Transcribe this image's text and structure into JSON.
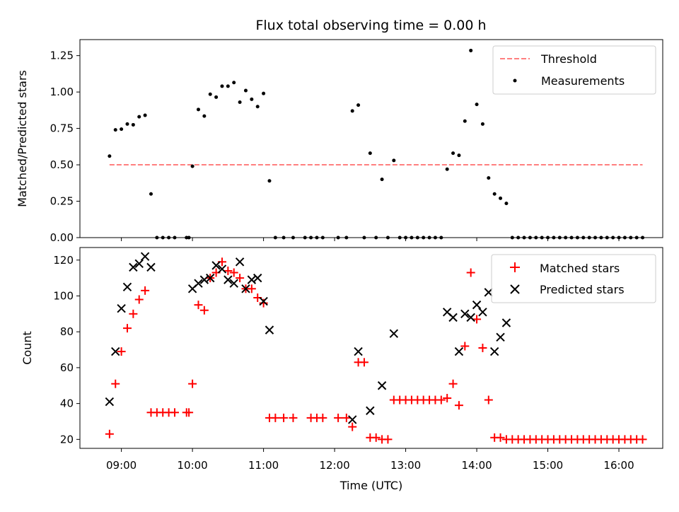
{
  "chart_data": [
    {
      "type": "scatter",
      "panel": "top",
      "title": "Flux total observing time = 0.00 h",
      "xlabel": "",
      "ylabel": "Matched/Predicted stars",
      "ylim": [
        0,
        1.36
      ],
      "xlim": [
        "08:25",
        "16:37"
      ],
      "yticks": [
        "0.00",
        "0.25",
        "0.50",
        "0.75",
        "1.00",
        "1.25"
      ],
      "ytick_values": [
        0,
        0.25,
        0.5,
        0.75,
        1.0,
        1.25
      ],
      "grid": false,
      "legend_position": "top-right",
      "threshold": {
        "name": "Threshold",
        "color": "#ff7f7f",
        "style": "dashed",
        "value": 0.5,
        "x_start": "08:50",
        "x_end": "16:20"
      },
      "series": [
        {
          "name": "Measurements",
          "color": "#000000",
          "marker": "dot",
          "points": [
            [
              "08:50",
              0.56
            ],
            [
              "08:55",
              0.74
            ],
            [
              "09:00",
              0.745
            ],
            [
              "09:05",
              0.78
            ],
            [
              "09:10",
              0.775
            ],
            [
              "09:15",
              0.83
            ],
            [
              "09:20",
              0.84
            ],
            [
              "09:25",
              0.3
            ],
            [
              "09:30",
              0.0
            ],
            [
              "09:35",
              0.0
            ],
            [
              "09:40",
              0.0
            ],
            [
              "09:45",
              0.0
            ],
            [
              "09:55",
              0.0
            ],
            [
              "09:57",
              0.0
            ],
            [
              "10:00",
              0.49
            ],
            [
              "10:05",
              0.88
            ],
            [
              "10:10",
              0.835
            ],
            [
              "10:15",
              0.985
            ],
            [
              "10:20",
              0.965
            ],
            [
              "10:25",
              1.04
            ],
            [
              "10:30",
              1.04
            ],
            [
              "10:35",
              1.065
            ],
            [
              "10:40",
              0.93
            ],
            [
              "10:45",
              1.01
            ],
            [
              "10:50",
              0.95
            ],
            [
              "10:55",
              0.9
            ],
            [
              "11:00",
              0.99
            ],
            [
              "11:05",
              0.39
            ],
            [
              "11:10",
              0.0
            ],
            [
              "11:17",
              0.0
            ],
            [
              "11:25",
              0.0
            ],
            [
              "11:35",
              0.0
            ],
            [
              "11:40",
              0.0
            ],
            [
              "11:45",
              0.0
            ],
            [
              "11:50",
              0.0
            ],
            [
              "12:03",
              0.0
            ],
            [
              "12:10",
              0.0
            ],
            [
              "12:15",
              0.87
            ],
            [
              "12:20",
              0.91
            ],
            [
              "12:25",
              0.0
            ],
            [
              "12:30",
              0.58
            ],
            [
              "12:35",
              0.0
            ],
            [
              "12:40",
              0.4
            ],
            [
              "12:45",
              0.0
            ],
            [
              "12:50",
              0.53
            ],
            [
              "12:55",
              0.0
            ],
            [
              "13:00",
              0.0
            ],
            [
              "13:05",
              0.0
            ],
            [
              "13:10",
              0.0
            ],
            [
              "13:15",
              0.0
            ],
            [
              "13:20",
              0.0
            ],
            [
              "13:25",
              0.0
            ],
            [
              "13:30",
              0.0
            ],
            [
              "13:35",
              0.47
            ],
            [
              "13:40",
              0.58
            ],
            [
              "13:45",
              0.565
            ],
            [
              "13:50",
              0.8
            ],
            [
              "13:55",
              1.285
            ],
            [
              "14:00",
              0.915
            ],
            [
              "14:05",
              0.78
            ],
            [
              "14:10",
              0.41
            ],
            [
              "14:15",
              0.3
            ],
            [
              "14:20",
              0.27
            ],
            [
              "14:25",
              0.235
            ],
            [
              "14:30",
              0.0
            ],
            [
              "14:35",
              0.0
            ],
            [
              "14:40",
              0.0
            ],
            [
              "14:45",
              0.0
            ],
            [
              "14:50",
              0.0
            ],
            [
              "14:55",
              0.0
            ],
            [
              "15:00",
              0.0
            ],
            [
              "15:05",
              0.0
            ],
            [
              "15:10",
              0.0
            ],
            [
              "15:15",
              0.0
            ],
            [
              "15:20",
              0.0
            ],
            [
              "15:25",
              0.0
            ],
            [
              "15:30",
              0.0
            ],
            [
              "15:35",
              0.0
            ],
            [
              "15:40",
              0.0
            ],
            [
              "15:45",
              0.0
            ],
            [
              "15:50",
              0.0
            ],
            [
              "15:55",
              0.0
            ],
            [
              "16:00",
              0.0
            ],
            [
              "16:05",
              0.0
            ],
            [
              "16:10",
              0.0
            ],
            [
              "16:15",
              0.0
            ],
            [
              "16:20",
              0.0
            ]
          ]
        }
      ]
    },
    {
      "type": "scatter",
      "panel": "bottom",
      "title": "",
      "xlabel": "Time (UTC)",
      "ylabel": "Count",
      "ylim": [
        15,
        127
      ],
      "xlim": [
        "08:25",
        "16:37"
      ],
      "xticks": [
        "09:00",
        "10:00",
        "11:00",
        "12:00",
        "13:00",
        "14:00",
        "15:00",
        "16:00"
      ],
      "yticks": [
        "20",
        "40",
        "60",
        "80",
        "100",
        "120"
      ],
      "ytick_values": [
        20,
        40,
        60,
        80,
        100,
        120
      ],
      "grid": false,
      "legend_position": "top-right",
      "series": [
        {
          "name": "Matched stars",
          "color": "#ff0000",
          "marker": "plus",
          "points": [
            [
              "08:50",
              23
            ],
            [
              "08:55",
              51
            ],
            [
              "09:00",
              69
            ],
            [
              "09:05",
              82
            ],
            [
              "09:10",
              90
            ],
            [
              "09:15",
              98
            ],
            [
              "09:20",
              103
            ],
            [
              "09:25",
              35
            ],
            [
              "09:30",
              35
            ],
            [
              "09:35",
              35
            ],
            [
              "09:40",
              35
            ],
            [
              "09:45",
              35
            ],
            [
              "09:55",
              35
            ],
            [
              "09:57",
              35
            ],
            [
              "10:00",
              51
            ],
            [
              "10:05",
              95
            ],
            [
              "10:10",
              92
            ],
            [
              "10:15",
              110
            ],
            [
              "10:20",
              113
            ],
            [
              "10:25",
              119
            ],
            [
              "10:30",
              114
            ],
            [
              "10:35",
              113
            ],
            [
              "10:40",
              110
            ],
            [
              "10:45",
              104
            ],
            [
              "10:50",
              104
            ],
            [
              "10:55",
              99
            ],
            [
              "11:00",
              96
            ],
            [
              "11:05",
              32
            ],
            [
              "11:10",
              32
            ],
            [
              "11:17",
              32
            ],
            [
              "11:25",
              32
            ],
            [
              "11:40",
              32
            ],
            [
              "11:45",
              32
            ],
            [
              "11:50",
              32
            ],
            [
              "12:03",
              32
            ],
            [
              "12:10",
              32
            ],
            [
              "12:15",
              27
            ],
            [
              "12:20",
              63
            ],
            [
              "12:25",
              63
            ],
            [
              "12:30",
              21
            ],
            [
              "12:35",
              21
            ],
            [
              "12:40",
              20
            ],
            [
              "12:45",
              20
            ],
            [
              "12:50",
              42
            ],
            [
              "12:55",
              42
            ],
            [
              "13:00",
              42
            ],
            [
              "13:05",
              42
            ],
            [
              "13:10",
              42
            ],
            [
              "13:15",
              42
            ],
            [
              "13:20",
              42
            ],
            [
              "13:25",
              42
            ],
            [
              "13:30",
              42
            ],
            [
              "13:35",
              43
            ],
            [
              "13:40",
              51
            ],
            [
              "13:45",
              39
            ],
            [
              "13:50",
              72
            ],
            [
              "13:55",
              113
            ],
            [
              "14:00",
              87
            ],
            [
              "14:05",
              71
            ],
            [
              "14:10",
              42
            ],
            [
              "14:15",
              21
            ],
            [
              "14:20",
              21
            ],
            [
              "14:25",
              20
            ],
            [
              "14:30",
              20
            ],
            [
              "14:35",
              20
            ],
            [
              "14:40",
              20
            ],
            [
              "14:45",
              20
            ],
            [
              "14:50",
              20
            ],
            [
              "14:55",
              20
            ],
            [
              "15:00",
              20
            ],
            [
              "15:05",
              20
            ],
            [
              "15:10",
              20
            ],
            [
              "15:15",
              20
            ],
            [
              "15:20",
              20
            ],
            [
              "15:25",
              20
            ],
            [
              "15:30",
              20
            ],
            [
              "15:35",
              20
            ],
            [
              "15:40",
              20
            ],
            [
              "15:45",
              20
            ],
            [
              "15:50",
              20
            ],
            [
              "15:55",
              20
            ],
            [
              "16:00",
              20
            ],
            [
              "16:05",
              20
            ],
            [
              "16:10",
              20
            ],
            [
              "16:15",
              20
            ],
            [
              "16:20",
              20
            ]
          ]
        },
        {
          "name": "Predicted stars",
          "color": "#000000",
          "marker": "x",
          "points": [
            [
              "08:50",
              41
            ],
            [
              "08:55",
              69
            ],
            [
              "09:00",
              93
            ],
            [
              "09:05",
              105
            ],
            [
              "09:10",
              116
            ],
            [
              "09:15",
              118
            ],
            [
              "09:20",
              122
            ],
            [
              "09:25",
              116
            ],
            [
              "10:00",
              104
            ],
            [
              "10:05",
              107
            ],
            [
              "10:10",
              109
            ],
            [
              "10:15",
              110
            ],
            [
              "10:20",
              117
            ],
            [
              "10:25",
              115
            ],
            [
              "10:30",
              109
            ],
            [
              "10:35",
              107
            ],
            [
              "10:40",
              119
            ],
            [
              "10:45",
              104
            ],
            [
              "10:50",
              109
            ],
            [
              "10:55",
              110
            ],
            [
              "11:00",
              97
            ],
            [
              "11:05",
              81
            ],
            [
              "12:15",
              31
            ],
            [
              "12:20",
              69
            ],
            [
              "12:30",
              36
            ],
            [
              "12:40",
              50
            ],
            [
              "12:50",
              79
            ],
            [
              "13:35",
              91
            ],
            [
              "13:40",
              88
            ],
            [
              "13:45",
              69
            ],
            [
              "13:50",
              90
            ],
            [
              "13:55",
              88
            ],
            [
              "14:00",
              95
            ],
            [
              "14:05",
              91
            ],
            [
              "14:10",
              102
            ],
            [
              "14:15",
              69
            ],
            [
              "14:20",
              77
            ],
            [
              "14:25",
              85
            ]
          ]
        }
      ]
    }
  ]
}
